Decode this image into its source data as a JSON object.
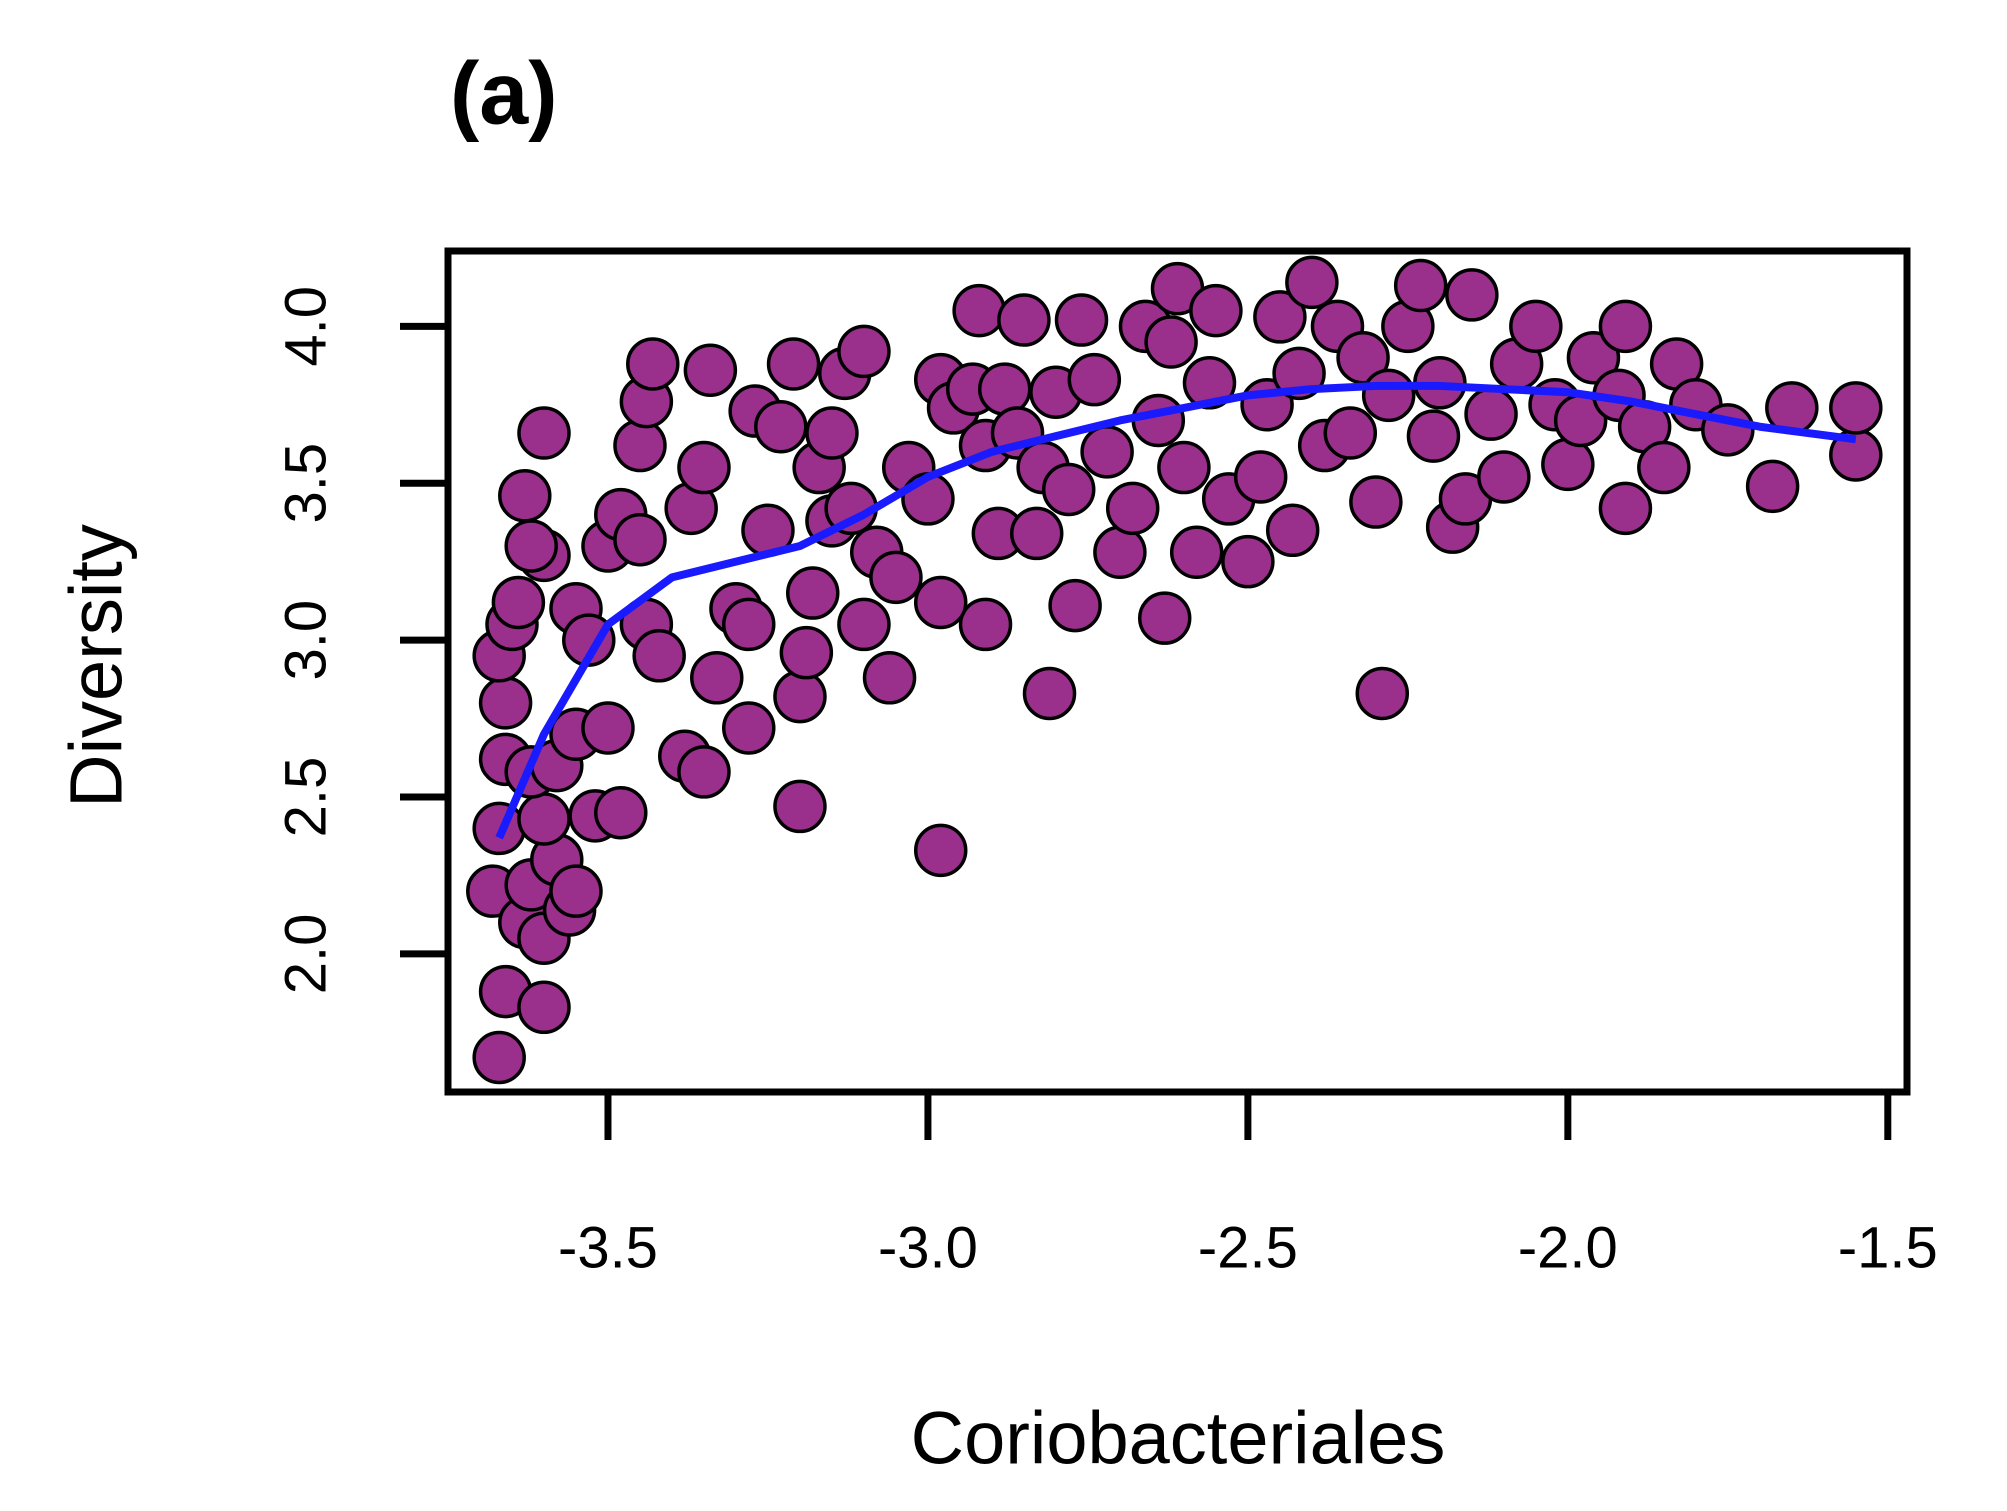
{
  "chart_data": {
    "type": "scatter",
    "title": "(a)",
    "x_label": "Coriobacteriales",
    "y_label": "Diversity",
    "point_color": "#9b2f8c",
    "point_edge": "#000000",
    "x": [
      -3.67,
      -3.66,
      -3.6,
      -3.2,
      -2.98,
      -2.81,
      -2.29,
      -2.63,
      -2.91,
      -1.91,
      -1.68,
      -1.55,
      -1.55,
      -1.65,
      -3.68,
      -3.67,
      -3.66,
      -3.66,
      -3.67,
      -3.65,
      -3.64,
      -3.63,
      -3.62,
      -3.6,
      -3.58,
      -3.56,
      -3.55,
      -3.6,
      -3.62,
      -3.58,
      -3.55,
      -3.6,
      -3.62,
      -3.63,
      -3.6,
      -3.55,
      -3.53,
      -3.52,
      -3.5,
      -3.48,
      -3.5,
      -3.48,
      -3.45,
      -3.44,
      -3.43,
      -3.45,
      -3.44,
      -3.42,
      -3.38,
      -3.35,
      -3.37,
      -3.35,
      -3.34,
      -3.33,
      -3.3,
      -3.28,
      -3.28,
      -3.25,
      -3.27,
      -3.23,
      -3.21,
      -3.2,
      -3.19,
      -3.18,
      -3.17,
      -3.15,
      -3.15,
      -3.13,
      -3.12,
      -3.1,
      -3.1,
      -3.08,
      -3.06,
      -3.05,
      -3.03,
      -3.0,
      -2.98,
      -2.98,
      -2.96,
      -2.93,
      -2.92,
      -2.91,
      -2.89,
      -2.88,
      -2.86,
      -2.85,
      -2.83,
      -2.82,
      -2.8,
      -2.78,
      -2.77,
      -2.76,
      -2.74,
      -2.72,
      -2.7,
      -2.68,
      -2.66,
      -2.64,
      -2.62,
      -2.61,
      -2.6,
      -2.58,
      -2.56,
      -2.55,
      -2.53,
      -2.5,
      -2.48,
      -2.47,
      -2.45,
      -2.43,
      -2.42,
      -2.4,
      -2.38,
      -2.36,
      -2.34,
      -2.32,
      -2.3,
      -2.28,
      -2.25,
      -2.23,
      -2.21,
      -2.2,
      -2.18,
      -2.16,
      -2.15,
      -2.12,
      -2.1,
      -2.08,
      -2.05,
      -2.02,
      -2.0,
      -1.98,
      -1.96,
      -1.92,
      -1.91,
      -1.88,
      -1.85,
      -1.83,
      -1.8,
      -1.75
    ],
    "y": [
      1.67,
      1.88,
      1.83,
      2.47,
      2.33,
      2.83,
      2.83,
      3.07,
      3.05,
      3.42,
      3.49,
      3.59,
      3.74,
      3.74,
      2.2,
      2.4,
      2.62,
      2.8,
      2.95,
      3.05,
      3.12,
      2.1,
      2.22,
      2.05,
      2.3,
      2.14,
      2.2,
      2.43,
      2.58,
      2.6,
      2.7,
      3.27,
      3.3,
      3.46,
      3.66,
      3.1,
      3.0,
      2.44,
      2.72,
      2.45,
      3.3,
      3.4,
      3.62,
      3.76,
      3.88,
      3.32,
      3.05,
      2.95,
      2.63,
      2.58,
      3.42,
      3.55,
      3.86,
      2.88,
      3.1,
      3.05,
      2.72,
      3.35,
      3.73,
      3.68,
      3.88,
      2.82,
      2.96,
      3.15,
      3.55,
      3.66,
      3.38,
      3.85,
      3.42,
      3.92,
      3.05,
      3.28,
      2.88,
      3.2,
      3.55,
      3.45,
      3.12,
      3.83,
      3.74,
      3.8,
      4.05,
      3.62,
      3.34,
      3.8,
      3.66,
      4.02,
      3.34,
      3.55,
      3.79,
      3.48,
      3.11,
      4.02,
      3.83,
      3.6,
      3.28,
      3.42,
      4.0,
      3.7,
      3.95,
      4.12,
      3.55,
      3.28,
      3.82,
      4.05,
      3.45,
      3.25,
      3.52,
      3.75,
      4.03,
      3.35,
      3.85,
      4.14,
      3.62,
      4.0,
      3.66,
      3.9,
      3.44,
      3.78,
      4.0,
      4.13,
      3.65,
      3.82,
      3.36,
      3.45,
      4.1,
      3.72,
      3.52,
      3.88,
      4.0,
      3.75,
      3.56,
      3.7,
      3.9,
      3.78,
      4.0,
      3.68,
      3.55,
      3.88,
      3.75,
      3.67
    ],
    "smooth": {
      "color": "#1a1aff",
      "x": [
        -3.67,
        -3.6,
        -3.5,
        -3.4,
        -3.3,
        -3.2,
        -3.1,
        -3.0,
        -2.9,
        -2.8,
        -2.7,
        -2.6,
        -2.5,
        -2.4,
        -2.3,
        -2.2,
        -2.1,
        -2.0,
        -1.9,
        -1.8,
        -1.7,
        -1.55
      ],
      "y": [
        2.37,
        2.7,
        3.05,
        3.2,
        3.25,
        3.3,
        3.4,
        3.52,
        3.6,
        3.65,
        3.7,
        3.74,
        3.78,
        3.8,
        3.81,
        3.81,
        3.8,
        3.79,
        3.76,
        3.72,
        3.68,
        3.64
      ]
    },
    "xlim": [
      -3.75,
      -1.47
    ],
    "ylim": [
      1.56,
      4.24
    ],
    "xticks": [
      -3.5,
      {
        "value": -3.0,
        "label": "-3.0"
      },
      -2.5,
      {
        "value": -2.0,
        "label": "-2.0"
      },
      -1.5
    ],
    "yticks": [
      {
        "value": 2.0,
        "label": "2.0"
      },
      2.5,
      {
        "value": 3.0,
        "label": "3.0"
      },
      3.5,
      {
        "value": 4.0,
        "label": "4.0"
      }
    ]
  }
}
